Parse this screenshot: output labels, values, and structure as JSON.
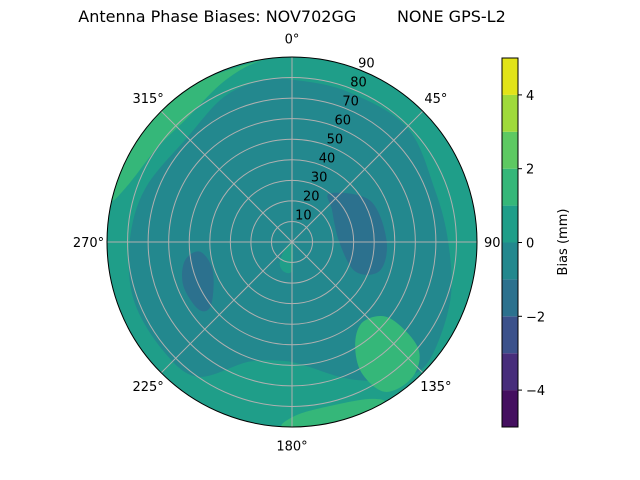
{
  "chart_data": {
    "type": "polar-contour",
    "title": "Antenna Phase Biases: NOV702GG        NONE GPS-L2",
    "theta_direction": "clockwise",
    "theta_zero": "north",
    "theta_ticks": [
      "0°",
      "45°",
      "90°",
      "135°",
      "180°",
      "225°",
      "270°",
      "315°"
    ],
    "theta_tick_values": [
      0,
      45,
      90,
      135,
      180,
      225,
      270,
      315
    ],
    "r_ticks": [
      "10",
      "20",
      "30",
      "40",
      "50",
      "60",
      "70",
      "80",
      "90"
    ],
    "r_tick_values": [
      10,
      20,
      30,
      40,
      50,
      60,
      70,
      80,
      90
    ],
    "rlim": [
      0,
      90
    ],
    "grid": true,
    "colorbar": {
      "label": "Bias (mm)",
      "levels": [
        -5,
        -4,
        -3,
        -2,
        -1,
        0,
        1,
        2,
        3,
        4,
        5
      ],
      "colors": [
        "#440f5f",
        "#472d7b",
        "#3b518b",
        "#2c718e",
        "#23888e",
        "#1f9e89",
        "#35b779",
        "#5ec962",
        "#9fda3a",
        "#e2e418"
      ],
      "ticks": [
        "−4",
        "−2",
        "0",
        "2",
        "4"
      ],
      "tick_values": [
        -4,
        -2,
        0,
        2,
        4
      ]
    },
    "regions": [
      {
        "level_range": [
          0,
          1
        ],
        "points": "full"
      },
      {
        "level_range": [
          1,
          2
        ],
        "points": [
          [
            283,
            90
          ],
          [
            290,
            84
          ],
          [
            305,
            80
          ],
          [
            320,
            79
          ],
          [
            335,
            84
          ],
          [
            345,
            88
          ],
          [
            352,
            90
          ],
          [
            330,
            90
          ],
          [
            310,
            90
          ],
          [
            295,
            90
          ]
        ]
      },
      {
        "level_range": [
          -1,
          0
        ],
        "points": [
          [
            0,
            79
          ],
          [
            20,
            78
          ],
          [
            45,
            79
          ],
          [
            70,
            74
          ],
          [
            90,
            76
          ],
          [
            110,
            82
          ],
          [
            130,
            88
          ],
          [
            140,
            86
          ],
          [
            150,
            78
          ],
          [
            160,
            70
          ],
          [
            175,
            60
          ],
          [
            185,
            58
          ],
          [
            200,
            62
          ],
          [
            215,
            80
          ],
          [
            230,
            82
          ],
          [
            250,
            82
          ],
          [
            270,
            79
          ],
          [
            290,
            76
          ],
          [
            315,
            72
          ],
          [
            335,
            78
          ],
          [
            350,
            80
          ]
        ]
      },
      {
        "level_range": [
          1,
          2
        ],
        "points": [
          [
            128,
            60
          ],
          [
            138,
            52
          ],
          [
            148,
            58
          ],
          [
            152,
            72
          ],
          [
            148,
            86
          ],
          [
            138,
            88
          ],
          [
            130,
            80
          ]
        ]
      },
      {
        "level_range": [
          1,
          2
        ],
        "points": [
          [
            150,
            90
          ],
          [
            154,
            85
          ],
          [
            165,
            82
          ],
          [
            178,
            84
          ],
          [
            183,
            90
          ],
          [
            170,
            90
          ],
          [
            160,
            90
          ]
        ]
      },
      {
        "level_range": [
          0,
          1
        ],
        "points": [
          [
            170,
            3
          ],
          [
            180,
            14
          ],
          [
            195,
            15
          ],
          [
            210,
            12
          ],
          [
            225,
            5
          ],
          [
            0,
            0
          ]
        ]
      },
      {
        "level_range": [
          -2,
          -1
        ],
        "points": [
          [
            38,
            30
          ],
          [
            62,
            43
          ],
          [
            89,
            46
          ],
          [
            108,
            45
          ],
          [
            115,
            34
          ],
          [
            90,
            23
          ],
          [
            51,
            25
          ]
        ]
      },
      {
        "level_range": [
          -2,
          -1
        ],
        "points": [
          [
            264,
            45
          ],
          [
            250,
            41
          ],
          [
            232,
            50
          ],
          [
            234,
            56
          ],
          [
            248,
            57
          ],
          [
            260,
            53
          ]
        ]
      }
    ]
  }
}
